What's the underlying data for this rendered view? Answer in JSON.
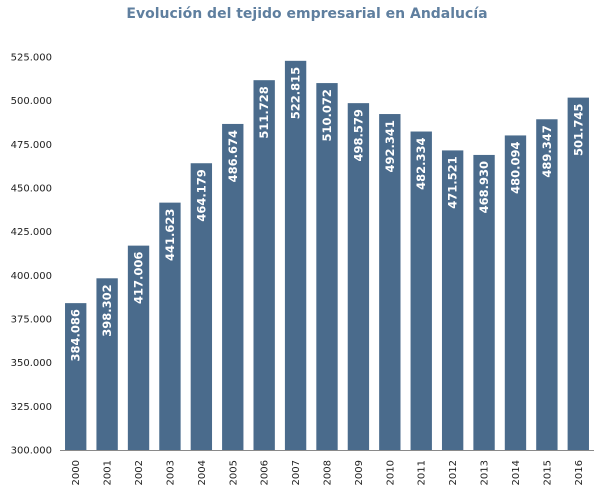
{
  "chart_data": {
    "type": "bar",
    "title": "Evolución del tejido empresarial en Andalucía",
    "xlabel": "",
    "ylabel": "",
    "categories": [
      "2000",
      "2001",
      "2002",
      "2003",
      "2004",
      "2005",
      "2006",
      "2007",
      "2008",
      "2009",
      "2010",
      "2011",
      "2012",
      "2013",
      "2014",
      "2015",
      "2016"
    ],
    "values": [
      384086,
      398302,
      417006,
      441623,
      464179,
      486674,
      511728,
      522815,
      510072,
      498579,
      492341,
      482334,
      471521,
      468930,
      480094,
      489347,
      501745
    ],
    "value_labels": [
      "384.086",
      "398.302",
      "417.006",
      "441.623",
      "464.179",
      "486.674",
      "511.728",
      "522.815",
      "510.072",
      "498.579",
      "492.341",
      "482.334",
      "471.521",
      "468.930",
      "480.094",
      "489.347",
      "501.745"
    ],
    "ylim": [
      300000,
      525000
    ],
    "yticks": [
      300000,
      325000,
      350000,
      375000,
      400000,
      425000,
      450000,
      475000,
      500000,
      525000
    ],
    "ytick_labels": [
      "300.000",
      "325.000",
      "350.000",
      "375.000",
      "400.000",
      "425.000",
      "450.000",
      "475.000",
      "500.000",
      "525.000"
    ],
    "grid": false,
    "bar_color": "#4a6b8c"
  }
}
